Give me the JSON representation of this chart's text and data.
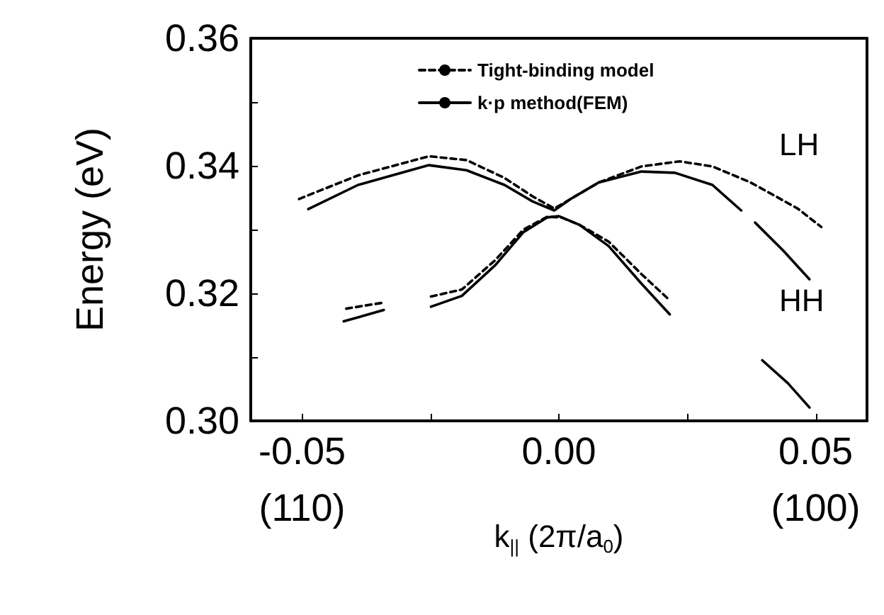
{
  "chart_data": {
    "type": "line",
    "xlabel": "k$_{||}$ (2π/a$_{0}$)",
    "ylabel": "Energy (eV)",
    "xlim": [
      -0.06,
      0.06
    ],
    "xticks": [
      -0.05,
      {
        "value": -0.025,
        "label": null
      },
      {
        "value": 0,
        "label": "0.00"
      },
      {
        "value": 0.025,
        "label": null
      },
      0.05
    ],
    "ylim": [
      0.3,
      0.36
    ],
    "yticks": [
      {
        "value": 0.3,
        "label": "0.30"
      },
      {
        "value": 0.31,
        "label": null
      },
      {
        "value": 0.32,
        "label": "0.32"
      },
      {
        "value": 0.33,
        "label": null
      },
      {
        "value": 0.34,
        "label": "0.34"
      },
      {
        "value": 0.35,
        "label": null
      },
      {
        "value": 0.36,
        "label": "0.36"
      }
    ],
    "grid": false,
    "legend": "top",
    "marker": "none",
    "series": [
      {
        "name": "Tight-binding model",
        "color": "#000000",
        "line_style": "dashed",
        "x": [
          -0.0506,
          -0.0391,
          -0.0253,
          -0.018,
          -0.0106,
          -0.0051,
          -0.0009,
          0.0023,
          0.0078,
          0.0161,
          0.0235,
          0.0299,
          0.0373,
          0.0465,
          0.0511
        ],
        "values": [
          0.3348,
          0.3385,
          0.3415,
          0.3409,
          0.3381,
          0.3352,
          0.3333,
          0.3348,
          0.3374,
          0.3399,
          0.3407,
          0.3399,
          0.3374,
          0.3333,
          0.3304
        ]
      },
      {
        "color": "#000000",
        "line_style": "dashed",
        "x": [
          -0.0414,
          -0.0345
        ],
        "values": [
          0.3176,
          0.3185
        ]
      },
      {
        "color": "#000000",
        "line_style": "dashed",
        "x": [
          -0.0249,
          -0.0189,
          -0.0124,
          -0.0069,
          -0.0023,
          0.0005,
          0.0041,
          0.0097,
          0.0161,
          0.0216
        ],
        "values": [
          0.3195,
          0.3206,
          0.3252,
          0.33,
          0.332,
          0.3319,
          0.3307,
          0.3281,
          0.323,
          0.3189
        ]
      },
      {
        "name": "k·p method(FEM)",
        "color": "#000000",
        "line_style": "solid",
        "x": [
          -0.0488,
          -0.0391,
          -0.0253,
          -0.018,
          -0.0106,
          -0.0051,
          -0.0009,
          0.0023,
          0.0078,
          0.0161,
          0.0226,
          0.0299,
          0.0355
        ],
        "values": [
          0.3332,
          0.337,
          0.3401,
          0.3393,
          0.337,
          0.3344,
          0.333,
          0.3348,
          0.3374,
          0.3391,
          0.3389,
          0.337,
          0.333
        ]
      },
      {
        "color": "#000000",
        "line_style": "solid",
        "x": [
          0.0382,
          0.0437,
          0.0488
        ],
        "values": [
          0.3311,
          0.3267,
          0.3222
        ]
      },
      {
        "color": "#000000",
        "line_style": "solid",
        "x": [
          -0.0419,
          -0.0341
        ],
        "values": [
          0.3156,
          0.3174
        ]
      },
      {
        "color": "#000000",
        "line_style": "solid",
        "x": [
          -0.0249,
          -0.0189,
          -0.0124,
          -0.0069,
          -0.0023,
          0,
          0.0041,
          0.0097,
          0.0161,
          0.0216
        ],
        "values": [
          0.3179,
          0.3196,
          0.3244,
          0.3296,
          0.3319,
          0.3321,
          0.3307,
          0.3274,
          0.3215,
          0.3167
        ]
      },
      {
        "color": "#000000",
        "line_style": "solid",
        "x": [
          0.0396,
          0.0446,
          0.0488
        ],
        "values": [
          0.3095,
          0.3059,
          0.3021
        ]
      }
    ],
    "annotations": [
      "LH",
      "HH",
      "(110)",
      "(100)"
    ]
  }
}
